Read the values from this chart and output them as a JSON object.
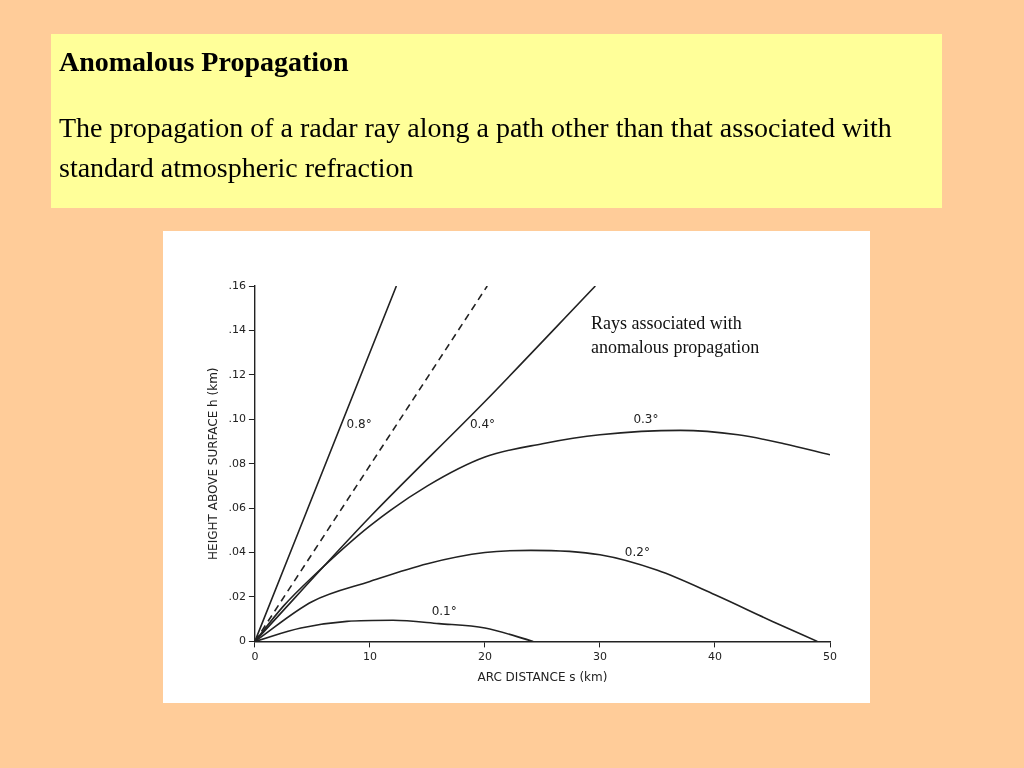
{
  "chart_data": {
    "type": "line",
    "title": "Anomalous Propagation",
    "subtitle": "The propagation of a radar ray along a path other than that associated with standard atmospheric refraction",
    "xlabel": "ARC DISTANCE s (km)",
    "ylabel": "HEIGHT ABOVE SURFACE h (km)",
    "xlim": [
      0,
      50
    ],
    "ylim": [
      0,
      0.16
    ],
    "xticks": [
      0,
      10,
      20,
      30,
      40,
      50
    ],
    "yticks": [
      0,
      {
        "value": 0.02,
        "label": ".02"
      },
      {
        "value": 0.04,
        "label": ".04"
      },
      {
        "value": 0.06,
        "label": ".06"
      },
      {
        "value": 0.08,
        "label": ".08"
      },
      {
        "value": 0.1,
        "label": ".10"
      },
      {
        "value": 0.12,
        "label": ".12"
      },
      {
        "value": 0.14,
        "label": ".14"
      },
      {
        "value": 0.16,
        "label": ".16"
      }
    ],
    "grid": false,
    "legend": false,
    "marker": "none",
    "line_style": "solid",
    "annotations": [
      "Rays associated with anomalous propagation"
    ],
    "series": [
      {
        "name": "0.8°",
        "color": "#222222",
        "x": [
          0,
          12.3
        ],
        "values": [
          0,
          0.16
        ]
      },
      {
        "color": "#222222",
        "line_style": "dashed",
        "x": [
          0,
          20.2
        ],
        "values": [
          0,
          0.16
        ]
      },
      {
        "name": "0.4°",
        "color": "#222222",
        "x": [
          0,
          10,
          20,
          29.6
        ],
        "values": [
          0,
          0.056,
          0.108,
          0.16
        ]
      },
      {
        "name": "0.3°",
        "color": "#222222",
        "x": [
          0,
          2.5,
          5,
          10,
          15,
          20,
          25,
          30,
          37,
          42,
          46,
          50
        ],
        "values": [
          0,
          0.016,
          0.029,
          0.052,
          0.07,
          0.083,
          0.089,
          0.093,
          0.095,
          0.093,
          0.089,
          0.084
        ]
      },
      {
        "name": "0.2°",
        "color": "#222222",
        "x": [
          0,
          5,
          10,
          15,
          20,
          24,
          30,
          35,
          40,
          45,
          48.9
        ],
        "values": [
          0,
          0.018,
          0.027,
          0.035,
          0.04,
          0.041,
          0.039,
          0.032,
          0.021,
          0.009,
          0
        ]
      },
      {
        "name": "0.1°",
        "color": "#222222",
        "x": [
          0,
          4,
          8,
          12,
          16,
          20,
          24.2
        ],
        "values": [
          0,
          0.006,
          0.009,
          0.0095,
          0.008,
          0.006,
          0
        ]
      }
    ]
  }
}
